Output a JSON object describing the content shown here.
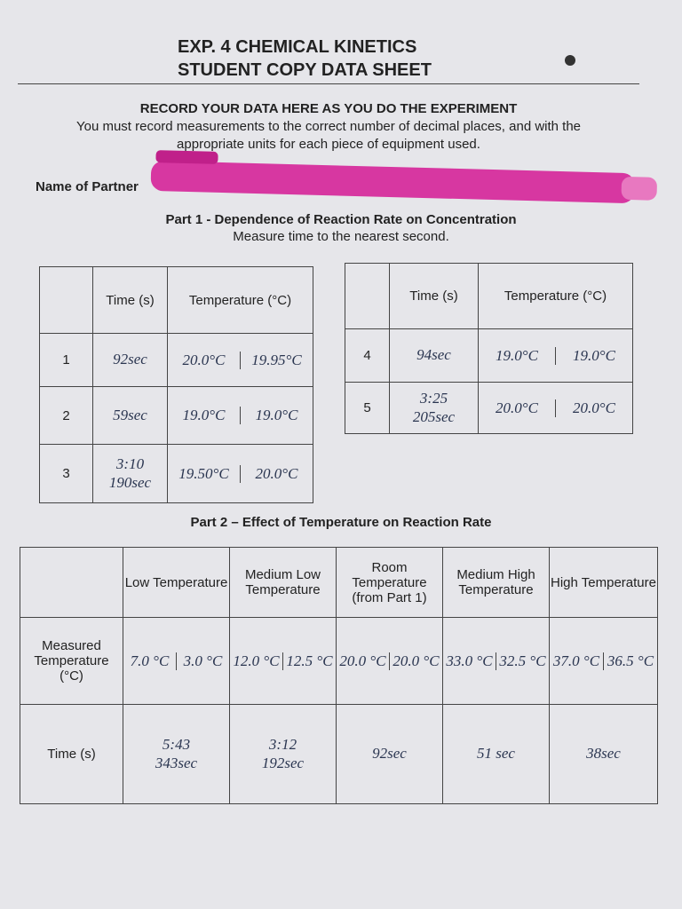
{
  "header": {
    "title": [
      "EXP. 4 CHEMICAL KINETICS",
      "STUDENT COPY DATA SHEET"
    ]
  },
  "instructions": {
    "heading": "RECORD YOUR DATA HERE AS YOU DO THE EXPERIMENT",
    "text": [
      "You must record measurements to the correct number of decimal places, and with the",
      "appropriate units for each piece of equipment used."
    ]
  },
  "partner_label": "Name of Partner",
  "part1": {
    "title": "Part 1 - Dependence of Reaction Rate on Concentration",
    "subtitle": "Measure time to the nearest second.",
    "headers": [
      "Time (s)",
      "Temperature (°C)"
    ],
    "tables": [
      {
        "rows": [
          {
            "trial": "1",
            "time": [
              "92sec"
            ],
            "temps": [
              "20.0°C",
              "19.95°C"
            ]
          },
          {
            "trial": "2",
            "time": [
              "59sec"
            ],
            "temps": [
              "19.0°C",
              "19.0°C"
            ]
          },
          {
            "trial": "3",
            "time": [
              "3:10",
              "190sec"
            ],
            "temps": [
              "19.50°C",
              "20.0°C"
            ]
          }
        ]
      },
      {
        "rows": [
          {
            "trial": "4",
            "time": [
              "94sec"
            ],
            "temps": [
              "19.0°C",
              "19.0°C"
            ]
          },
          {
            "trial": "5",
            "time": [
              "3:25",
              "205sec"
            ],
            "temps": [
              "20.0°C",
              "20.0°C"
            ]
          }
        ]
      }
    ]
  },
  "part2": {
    "title": "Part 2 – Effect of Temperature on Reaction Rate",
    "headers": [
      "Low Temperature",
      "Medium Low Temperature",
      "Room Temperature (from Part 1)",
      "Medium High Temperature",
      "High Temperature"
    ],
    "measured_label": "Measured Temperature (°C)",
    "measured": [
      [
        "7.0 °C",
        "3.0 °C"
      ],
      [
        "12.0 °C",
        "12.5 °C"
      ],
      [
        "20.0 °C",
        "20.0 °C"
      ],
      [
        "33.0 °C",
        "32.5 °C"
      ],
      [
        "37.0 °C",
        "36.5 °C"
      ]
    ],
    "time_label": "Time (s)",
    "times": [
      [
        "5:43",
        "343sec"
      ],
      [
        "3:12",
        "192sec"
      ],
      [
        "92sec"
      ],
      [
        "51 sec"
      ],
      [
        "38sec"
      ]
    ]
  }
}
